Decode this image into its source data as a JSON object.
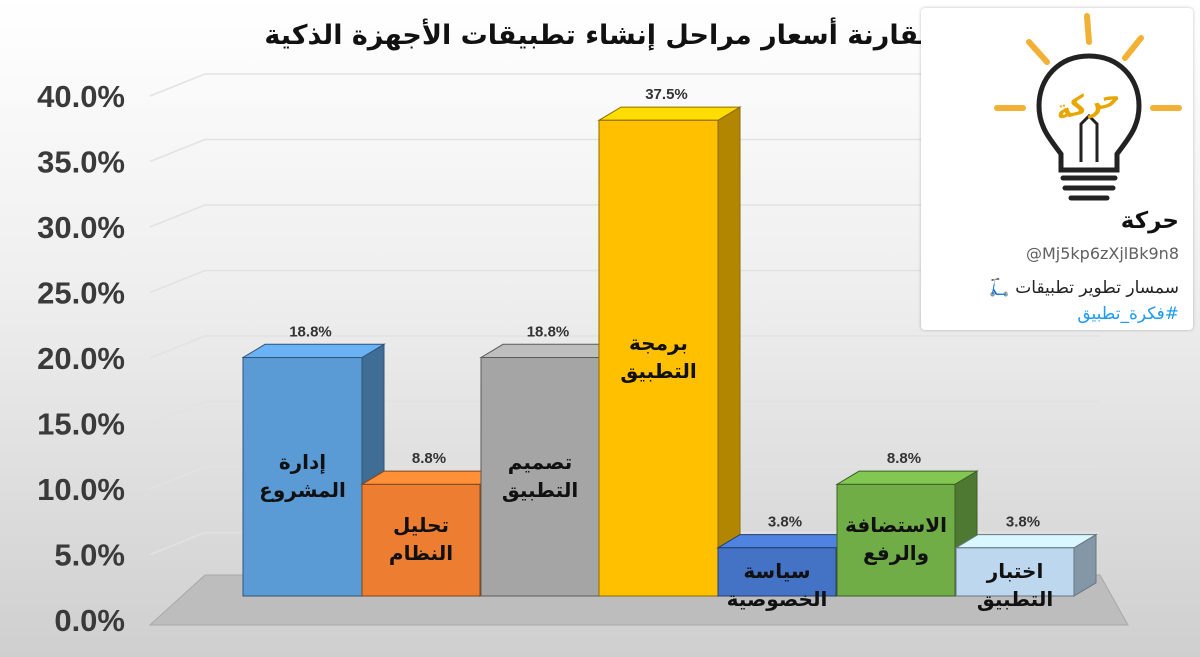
{
  "chart_data": {
    "type": "bar",
    "title": "مقارنة أسعار مراحل إنشاء تطبيقات الأجهزة الذكية",
    "xlabel": "",
    "ylabel": "",
    "ylim": [
      0,
      40
    ],
    "y_ticks": [
      "0.0%",
      "5.0%",
      "10.0%",
      "15.0%",
      "20.0%",
      "25.0%",
      "30.0%",
      "35.0%",
      "40.0%"
    ],
    "grid": true,
    "style": "3d-columns",
    "categories": [
      [
        "إدارة",
        "المشروع"
      ],
      [
        "تحليل",
        "النظام"
      ],
      [
        "تصميم",
        "التطبيق"
      ],
      [
        "برمجة",
        "التطبيق"
      ],
      [
        "سياسة",
        "الخصوصية"
      ],
      [
        "الاستضافة",
        "والرفع"
      ],
      [
        "اختبار",
        "التطبيق"
      ]
    ],
    "values": [
      18.8,
      8.8,
      18.8,
      37.5,
      3.8,
      8.8,
      3.8
    ],
    "data_labels": [
      "18.8%",
      "8.8%",
      "18.8%",
      "37.5%",
      "3.8%",
      "8.8%",
      "3.8%"
    ],
    "colors": [
      "#5b9bd5",
      "#ed7d31",
      "#a5a5a5",
      "#ffc000",
      "#4472c4",
      "#70ad47",
      "#bdd7ee"
    ]
  },
  "brand": {
    "logo_text": "حركة",
    "name": "حركة",
    "handle": "@Mj5kp6zXjlBk9n8",
    "bio": "سمسار تطوير تطبيقات 🛴",
    "hashtag": "#فكرة_تطبيق"
  }
}
